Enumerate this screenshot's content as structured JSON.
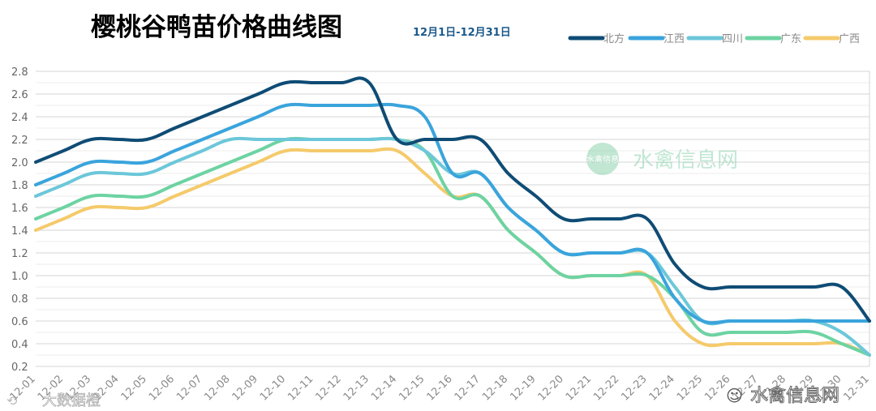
{
  "chart_data": {
    "type": "line",
    "title": "樱桃谷鸭苗价格曲线图",
    "subtitle": "12月1日-12月31日",
    "xlabel": "",
    "ylabel": "",
    "ylim": [
      0.2,
      2.8
    ],
    "yticks": [
      "2.8",
      "2.6",
      "2.4",
      "2.2",
      "2.0",
      "1.8",
      "1.6",
      "1.4",
      "1.2",
      "1.0",
      "0.8",
      "0.6",
      "0.4",
      "0.2"
    ],
    "grid": true,
    "legend_position": "top-right",
    "x": [
      "12-01",
      "12-02",
      "12-03",
      "12-04",
      "12-05",
      "12-06",
      "12-07",
      "12-08",
      "12-09",
      "12-10",
      "12-11",
      "12-12",
      "12-13",
      "12-14",
      "12-15",
      "12-16",
      "12-17",
      "12-18",
      "12-19",
      "12-20",
      "12-21",
      "12-22",
      "12-23",
      "12-24",
      "12-25",
      "12-26",
      "12-27",
      "12-28",
      "12-29",
      "12-30",
      "12-31"
    ],
    "series": [
      {
        "name": "北方",
        "color": "#0f4c75",
        "values": [
          2.0,
          2.1,
          2.2,
          2.2,
          2.2,
          2.3,
          2.4,
          2.5,
          2.6,
          2.7,
          2.7,
          2.7,
          2.7,
          2.2,
          2.2,
          2.2,
          2.2,
          1.9,
          1.7,
          1.5,
          1.5,
          1.5,
          1.5,
          1.1,
          0.9,
          0.9,
          0.9,
          0.9,
          0.9,
          0.9,
          0.6
        ]
      },
      {
        "name": "江西",
        "color": "#3aa4dc",
        "values": [
          1.8,
          1.9,
          2.0,
          2.0,
          2.0,
          2.1,
          2.2,
          2.3,
          2.4,
          2.5,
          2.5,
          2.5,
          2.5,
          2.5,
          2.4,
          1.9,
          1.9,
          1.6,
          1.4,
          1.2,
          1.2,
          1.2,
          1.2,
          0.8,
          0.6,
          0.6,
          0.6,
          0.6,
          0.6,
          0.6,
          0.6
        ]
      },
      {
        "name": "四川",
        "color": "#6cc7d9",
        "values": [
          1.7,
          1.8,
          1.9,
          1.9,
          1.9,
          2.0,
          2.1,
          2.2,
          2.2,
          2.2,
          2.2,
          2.2,
          2.2,
          2.2,
          2.1,
          1.9,
          1.9,
          1.6,
          1.4,
          1.2,
          1.2,
          1.2,
          1.2,
          0.9,
          0.6,
          0.6,
          0.6,
          0.6,
          0.6,
          0.5,
          0.3
        ]
      },
      {
        "name": "广东",
        "color": "#6dd3a2",
        "values": [
          1.5,
          1.6,
          1.7,
          1.7,
          1.7,
          1.8,
          1.9,
          2.0,
          2.1,
          2.2,
          2.2,
          2.2,
          2.2,
          2.2,
          2.1,
          1.7,
          1.7,
          1.4,
          1.2,
          1.0,
          1.0,
          1.0,
          1.0,
          0.8,
          0.5,
          0.5,
          0.5,
          0.5,
          0.5,
          0.4,
          0.3
        ]
      },
      {
        "name": "广西",
        "color": "#f5ca6b",
        "values": [
          1.4,
          1.5,
          1.6,
          1.6,
          1.6,
          1.7,
          1.8,
          1.9,
          2.0,
          2.1,
          2.1,
          2.1,
          2.1,
          2.1,
          1.9,
          1.7,
          1.7,
          1.4,
          1.2,
          1.0,
          1.0,
          1.0,
          1.0,
          0.6,
          0.4,
          0.4,
          0.4,
          0.4,
          0.4,
          0.4,
          0.3
        ]
      }
    ]
  },
  "watermarks": {
    "logo_badge": "水禽信息",
    "center": "水禽信息网",
    "bottom_right": "水禽信息网",
    "bottom_left": "大数据橙"
  }
}
